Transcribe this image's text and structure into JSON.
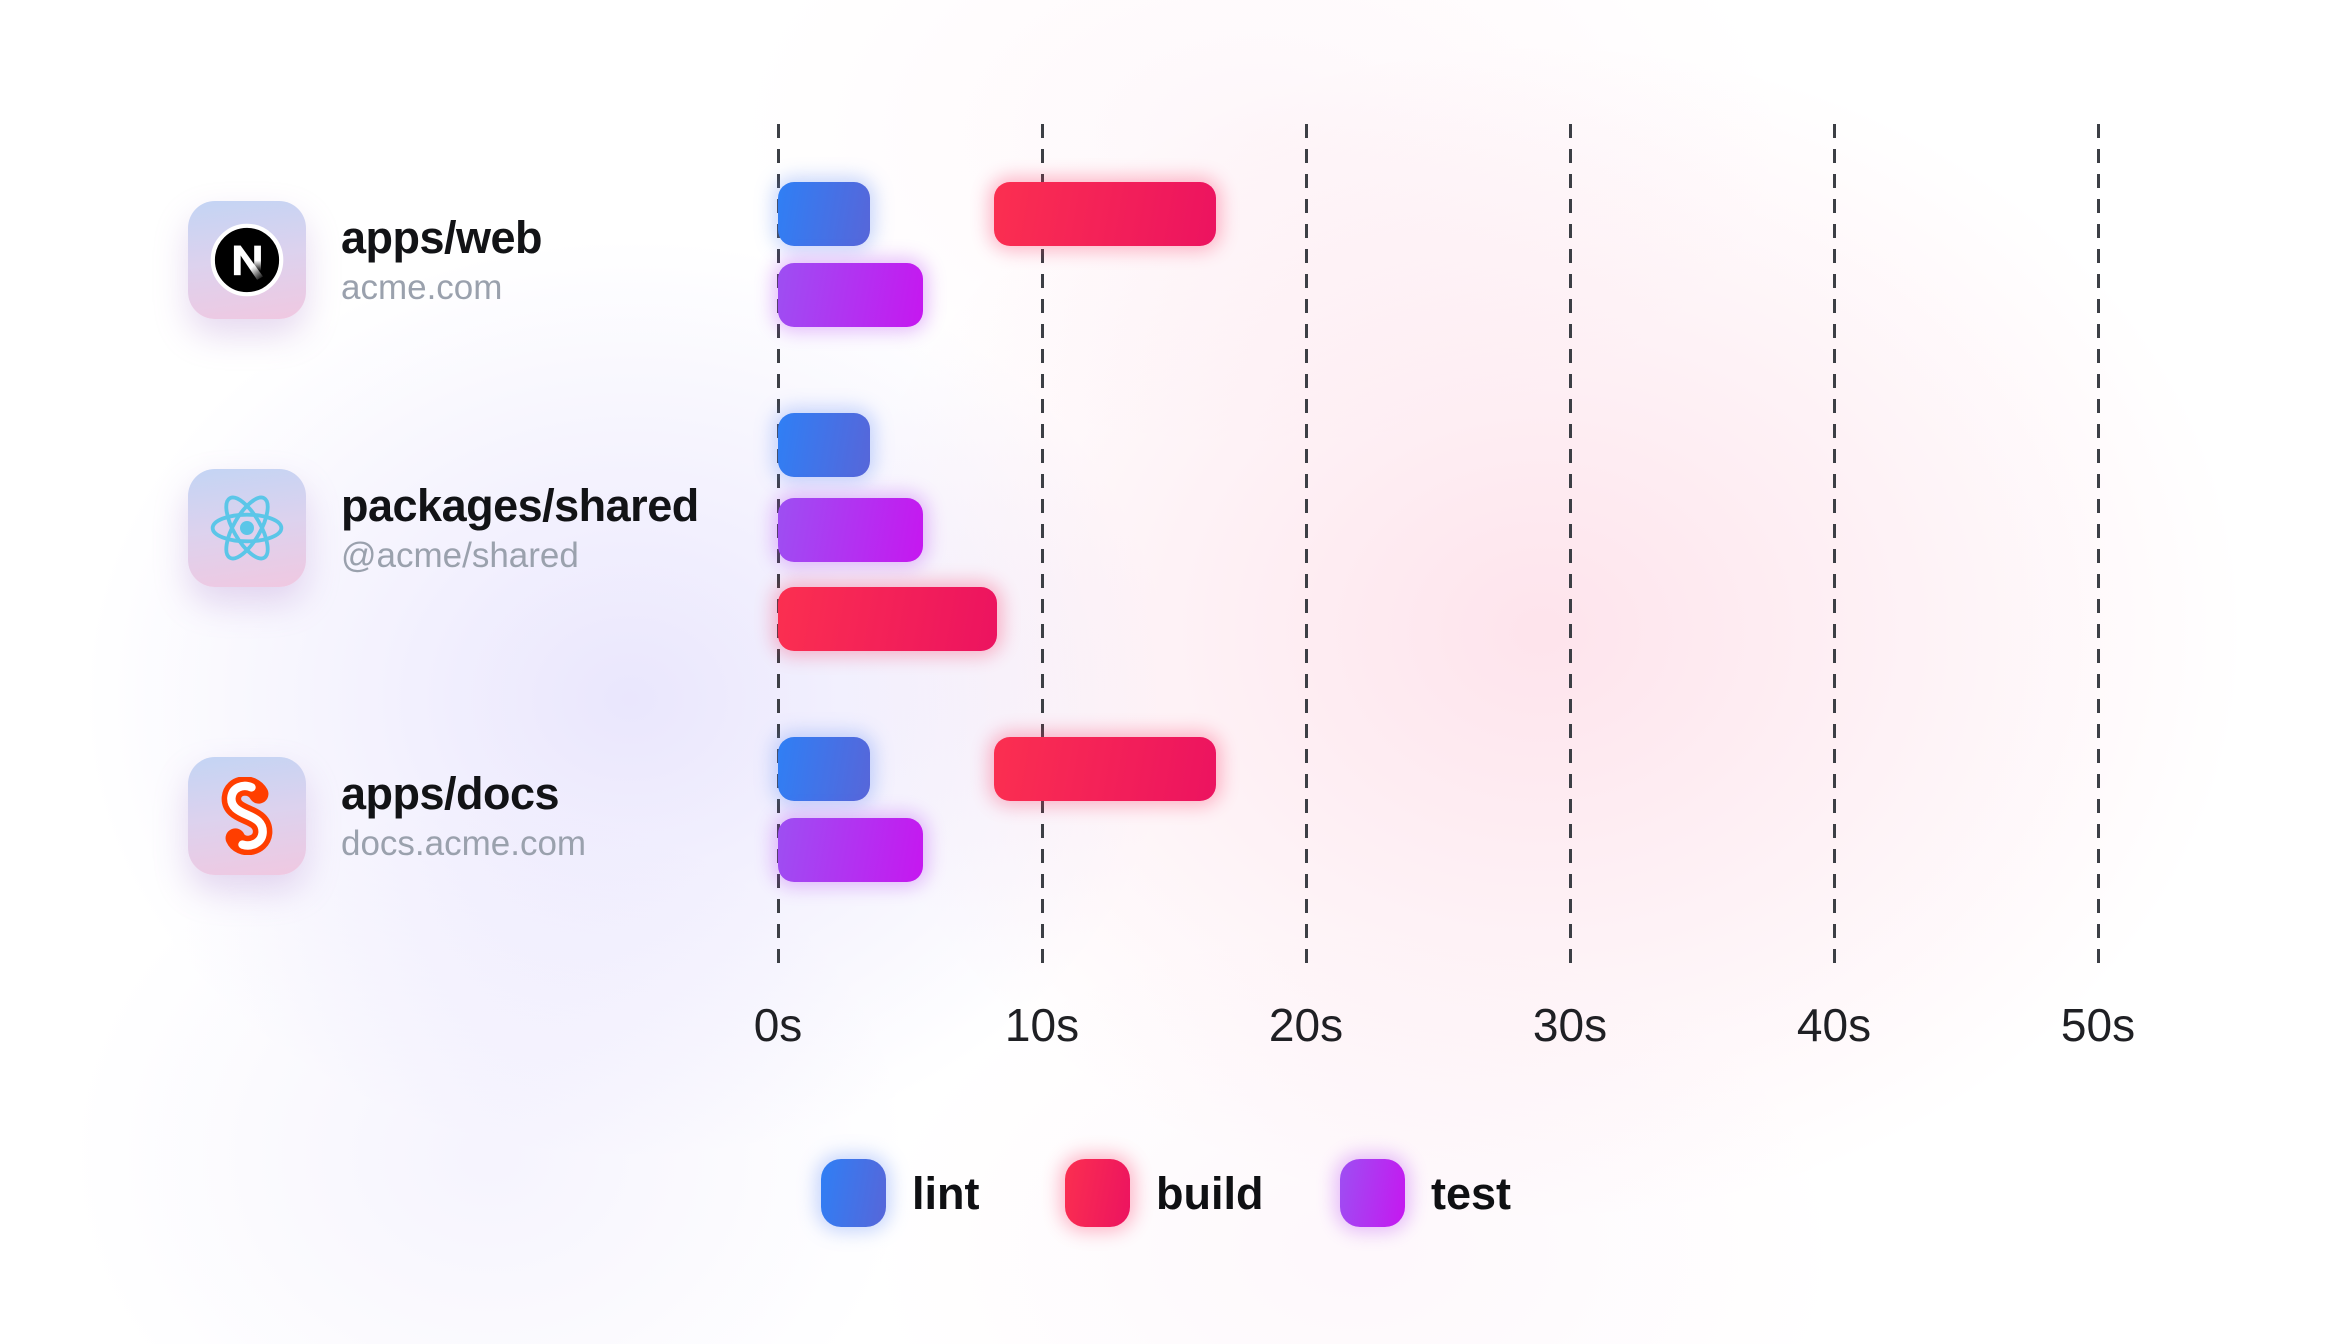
{
  "chart_data": {
    "type": "gantt",
    "title": "",
    "x_axis": {
      "unit": "seconds",
      "max": 50,
      "gridlines": "dashed",
      "ticks": [
        {
          "label": "0s",
          "value": 0
        },
        {
          "label": "10s",
          "value": 10
        },
        {
          "label": "20s",
          "value": 20
        },
        {
          "label": "30s",
          "value": 30
        },
        {
          "label": "40s",
          "value": 40
        },
        {
          "label": "50s",
          "value": 50
        }
      ]
    },
    "rows": [
      {
        "package": "apps/web",
        "subtitle": "acme.com",
        "icon": "nextjs-icon",
        "tasks": [
          {
            "name": "lint",
            "start": 0,
            "end": 3.5,
            "lane": 0
          },
          {
            "name": "build",
            "start": 8.2,
            "end": 16.6,
            "lane": 0
          },
          {
            "name": "test",
            "start": 0,
            "end": 5.5,
            "lane": 1
          }
        ]
      },
      {
        "package": "packages/shared",
        "subtitle": "@acme/shared",
        "icon": "react-icon",
        "tasks": [
          {
            "name": "lint",
            "start": 0,
            "end": 3.5,
            "lane": 0
          },
          {
            "name": "test",
            "start": 0,
            "end": 5.5,
            "lane": 1
          },
          {
            "name": "build",
            "start": 0,
            "end": 8.3,
            "lane": 2
          }
        ]
      },
      {
        "package": "apps/docs",
        "subtitle": "docs.acme.com",
        "icon": "svelte-icon",
        "tasks": [
          {
            "name": "lint",
            "start": 0,
            "end": 3.5,
            "lane": 0
          },
          {
            "name": "build",
            "start": 8.2,
            "end": 16.6,
            "lane": 0
          },
          {
            "name": "test",
            "start": 0,
            "end": 5.5,
            "lane": 1
          }
        ]
      }
    ],
    "legend": [
      {
        "label": "lint",
        "key": "lint"
      },
      {
        "label": "build",
        "key": "build"
      },
      {
        "label": "test",
        "key": "test"
      }
    ]
  },
  "colors": {
    "lint": [
      "#2f7ff5",
      "#5766d9"
    ],
    "build": [
      "#fb2f50",
      "#ec1360"
    ],
    "test": [
      "#9d4ff2",
      "#c617f0"
    ],
    "gridline": "#3c3f45",
    "axis_text": "#1f2024",
    "title_text": "#121316",
    "subtitle_text": "#9aa1ad",
    "legend_text": "#0f1013",
    "brand": {
      "nextjs": "#000000",
      "react": "#5BC6E8",
      "svelte": "#FF3E00"
    }
  }
}
